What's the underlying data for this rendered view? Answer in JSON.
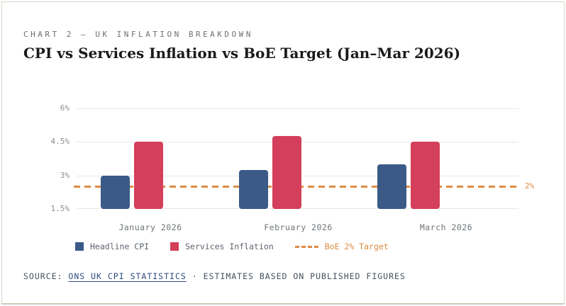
{
  "header": {
    "eyebrow": "CHART 2 — UK INFLATION BREAKDOWN",
    "title": "CPI vs Services Inflation vs BoE Target (Jan–Mar 2026)"
  },
  "chart_data": {
    "type": "bar",
    "title": "CPI vs Services Inflation vs BoE Target (Jan–Mar 2026)",
    "categories": [
      "January 2026",
      "February 2026",
      "March 2026"
    ],
    "series": [
      {
        "name": "Headline CPI",
        "color": "#3b5a88",
        "values": [
          3.0,
          3.25,
          3.5
        ]
      },
      {
        "name": "Services Inflation",
        "color": "#d43f5b",
        "values": [
          4.5,
          4.75,
          4.5
        ]
      }
    ],
    "target_line": {
      "name": "BoE 2% Target",
      "value": 2,
      "value_label": "2%",
      "color": "#dd8b43",
      "axis_position": 2.5
    },
    "y_ticks": [
      "6%",
      "4.5%",
      "3%",
      "1.5%"
    ],
    "ylim": [
      1.5,
      6
    ],
    "unit": "%",
    "grid": true,
    "legend_position": "bottom",
    "xlabel": "",
    "ylabel": ""
  },
  "footer": {
    "source_label": "SOURCE:",
    "source_link": "ONS UK CPI STATISTICS",
    "separator": "·",
    "note": "ESTIMATES BASED ON PUBLISHED FIGURES"
  }
}
